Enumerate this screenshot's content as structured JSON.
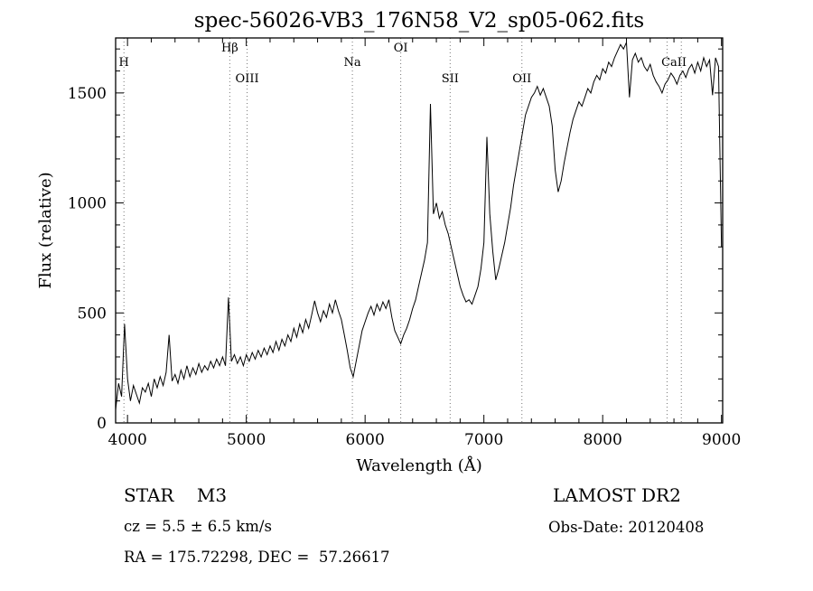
{
  "header": {
    "title": "spec-56026-VB3_176N58_V2_sp05-062.fits"
  },
  "footer": {
    "class_label": "STAR    M3",
    "survey": "LAMOST DR2",
    "cz": "cz = 5.5 ± 6.5 km/s",
    "obs_date": "Obs-Date: 20120408",
    "coords": "RA = 175.72298, DEC =  57.26617"
  },
  "chart_data": {
    "type": "line",
    "title": "spec-56026-VB3_176N58_V2_sp05-062.fits",
    "xlabel": "Wavelength (Å)",
    "ylabel": "Flux (relative)",
    "xlim": [
      3900,
      9010
    ],
    "ylim": [
      0,
      1750
    ],
    "x_ticks": [
      4000,
      5000,
      6000,
      7000,
      8000,
      9000
    ],
    "y_ticks": [
      0,
      500,
      1000,
      1500
    ],
    "x_minor_step": 200,
    "y_minor_step": 100,
    "grid": false,
    "legend": "none",
    "line_color": "#000000",
    "marker_color": "#777777",
    "x_start": 3900,
    "x_step": 25,
    "flux": [
      60,
      180,
      120,
      450,
      200,
      100,
      170,
      130,
      90,
      160,
      140,
      180,
      120,
      200,
      160,
      210,
      170,
      230,
      400,
      190,
      220,
      180,
      240,
      200,
      260,
      210,
      250,
      220,
      270,
      230,
      260,
      240,
      280,
      250,
      290,
      260,
      300,
      260,
      570,
      280,
      310,
      270,
      300,
      260,
      310,
      280,
      320,
      290,
      330,
      300,
      340,
      310,
      350,
      320,
      370,
      330,
      380,
      350,
      400,
      370,
      430,
      390,
      450,
      410,
      470,
      430,
      490,
      555,
      500,
      460,
      510,
      480,
      540,
      500,
      560,
      510,
      470,
      400,
      330,
      250,
      210,
      280,
      350,
      420,
      460,
      500,
      530,
      490,
      540,
      510,
      550,
      520,
      560,
      480,
      420,
      390,
      360,
      400,
      430,
      470,
      520,
      560,
      620,
      680,
      740,
      820,
      1450,
      950,
      1000,
      930,
      960,
      900,
      860,
      800,
      740,
      680,
      620,
      580,
      550,
      560,
      540,
      580,
      620,
      700,
      820,
      1300,
      950,
      780,
      650,
      700,
      760,
      820,
      900,
      980,
      1080,
      1160,
      1240,
      1320,
      1400,
      1440,
      1480,
      1500,
      1530,
      1490,
      1520,
      1480,
      1440,
      1350,
      1150,
      1050,
      1100,
      1180,
      1250,
      1320,
      1380,
      1420,
      1460,
      1440,
      1480,
      1520,
      1500,
      1550,
      1580,
      1560,
      1610,
      1590,
      1640,
      1620,
      1660,
      1690,
      1720,
      1700,
      1730,
      1480,
      1650,
      1680,
      1640,
      1660,
      1620,
      1600,
      1630,
      1580,
      1550,
      1530,
      1500,
      1540,
      1560,
      1590,
      1570,
      1540,
      1580,
      1600,
      1570,
      1610,
      1630,
      1590,
      1640,
      1600,
      1660,
      1620,
      1650,
      1490,
      1660,
      1620,
      800
    ],
    "spectral_lines": {
      "wavelengths": [
        3970,
        4861,
        5007,
        5893,
        6300,
        6716,
        7320,
        8542,
        8662
      ],
      "labels": [
        {
          "text": "H",
          "wavelength": 3970,
          "row": 1
        },
        {
          "text": "Hβ",
          "wavelength": 4861,
          "row": 0
        },
        {
          "text": "OIII",
          "wavelength": 5007,
          "row": 2
        },
        {
          "text": "Na",
          "wavelength": 5893,
          "row": 1
        },
        {
          "text": "OI",
          "wavelength": 6300,
          "row": 0
        },
        {
          "text": "SII",
          "wavelength": 6716,
          "row": 2
        },
        {
          "text": "OII",
          "wavelength": 7320,
          "row": 2
        },
        {
          "text": "CaII",
          "wavelength": 8600,
          "row": 1
        }
      ]
    }
  }
}
